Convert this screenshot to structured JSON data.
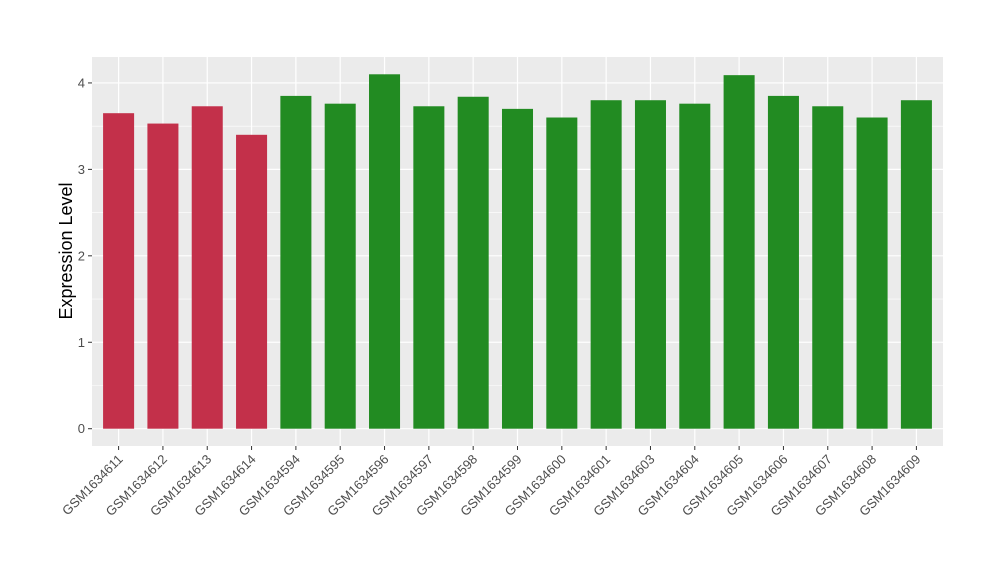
{
  "chart_data": {
    "type": "bar",
    "ylabel": "Expression Level",
    "xlabel": "",
    "ylim": [
      -0.2,
      4.3
    ],
    "yticks": [
      0,
      1,
      2,
      3,
      4
    ],
    "yticks_labels": [
      "0",
      "1",
      "2",
      "3",
      "4"
    ],
    "minor_gridlines": true,
    "legend": "none",
    "panel_background": "#EBEBEB",
    "gridline_color": "#FFFFFF",
    "categories": [
      "GSM1634611",
      "GSM1634612",
      "GSM1634613",
      "GSM1634614",
      "GSM1634594",
      "GSM1634595",
      "GSM1634596",
      "GSM1634597",
      "GSM1634598",
      "GSM1634599",
      "GSM1634600",
      "GSM1634601",
      "GSM1634603",
      "GSM1634604",
      "GSM1634605",
      "GSM1634606",
      "GSM1634607",
      "GSM1634608",
      "GSM1634609"
    ],
    "values": [
      3.65,
      3.53,
      3.73,
      3.4,
      3.85,
      3.76,
      4.1,
      3.73,
      3.84,
      3.7,
      3.6,
      3.8,
      3.8,
      3.76,
      4.09,
      3.85,
      3.73,
      3.6,
      3.8
    ],
    "bar_colors": [
      "#C3304A",
      "#C3304A",
      "#C3304A",
      "#C3304A",
      "#228B22",
      "#228B22",
      "#228B22",
      "#228B22",
      "#228B22",
      "#228B22",
      "#228B22",
      "#228B22",
      "#228B22",
      "#228B22",
      "#228B22",
      "#228B22",
      "#228B22",
      "#228B22",
      "#228B22"
    ]
  }
}
